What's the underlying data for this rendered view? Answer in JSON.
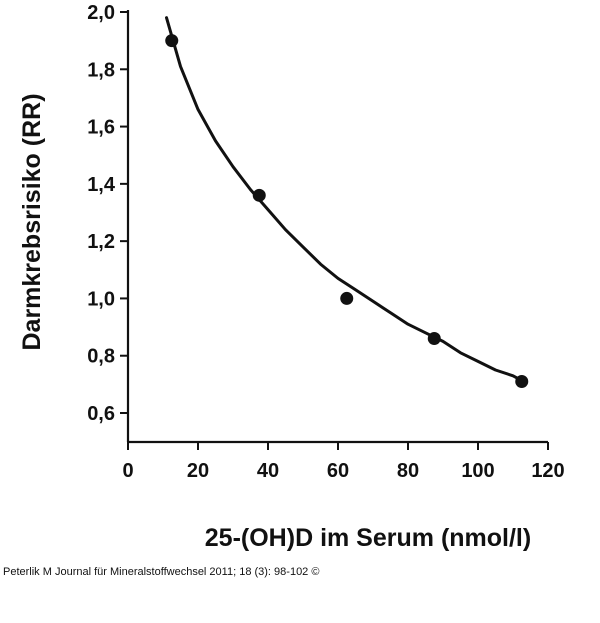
{
  "chart_data": {
    "type": "scatter",
    "title": "",
    "xlabel": "25-(OH)D im Serum (nmol/l)",
    "ylabel": "Darmkrebsrisiko (RR)",
    "xlim": [
      0,
      120
    ],
    "ylim": [
      0.5,
      2.0
    ],
    "x_ticks": [
      0,
      20,
      40,
      60,
      80,
      100,
      120
    ],
    "x_tick_labels": [
      "0",
      "20",
      "40",
      "60",
      "80",
      "100",
      "120"
    ],
    "y_ticks": [
      0.6,
      0.8,
      1.0,
      1.2,
      1.4,
      1.6,
      1.8,
      2.0
    ],
    "y_tick_labels": [
      "0,6",
      "0,8",
      "1,0",
      "1,2",
      "1,4",
      "1,6",
      "1,8",
      "2,0"
    ],
    "grid": false,
    "legend": "none",
    "colors": {
      "axis": "#111111",
      "points": "#111111",
      "curve": "#111111"
    },
    "series": [
      {
        "kind": "points",
        "x": [
          12.5,
          37.5,
          62.5,
          87.5,
          112.5
        ],
        "y": [
          1.9,
          1.36,
          1.0,
          0.86,
          0.71
        ]
      },
      {
        "kind": "fitted-curve",
        "x": [
          11,
          15,
          20,
          25,
          30,
          35,
          40,
          45,
          50,
          55,
          60,
          65,
          70,
          75,
          80,
          85,
          90,
          95,
          100,
          105,
          110,
          113
        ],
        "y": [
          1.98,
          1.81,
          1.66,
          1.55,
          1.46,
          1.38,
          1.31,
          1.24,
          1.18,
          1.12,
          1.07,
          1.03,
          0.99,
          0.95,
          0.91,
          0.88,
          0.85,
          0.81,
          0.78,
          0.75,
          0.73,
          0.71
        ]
      }
    ]
  },
  "caption": "Peterlik M Journal für Mineralstoffwechsel 2011; 18 (3): 98-102 ©"
}
